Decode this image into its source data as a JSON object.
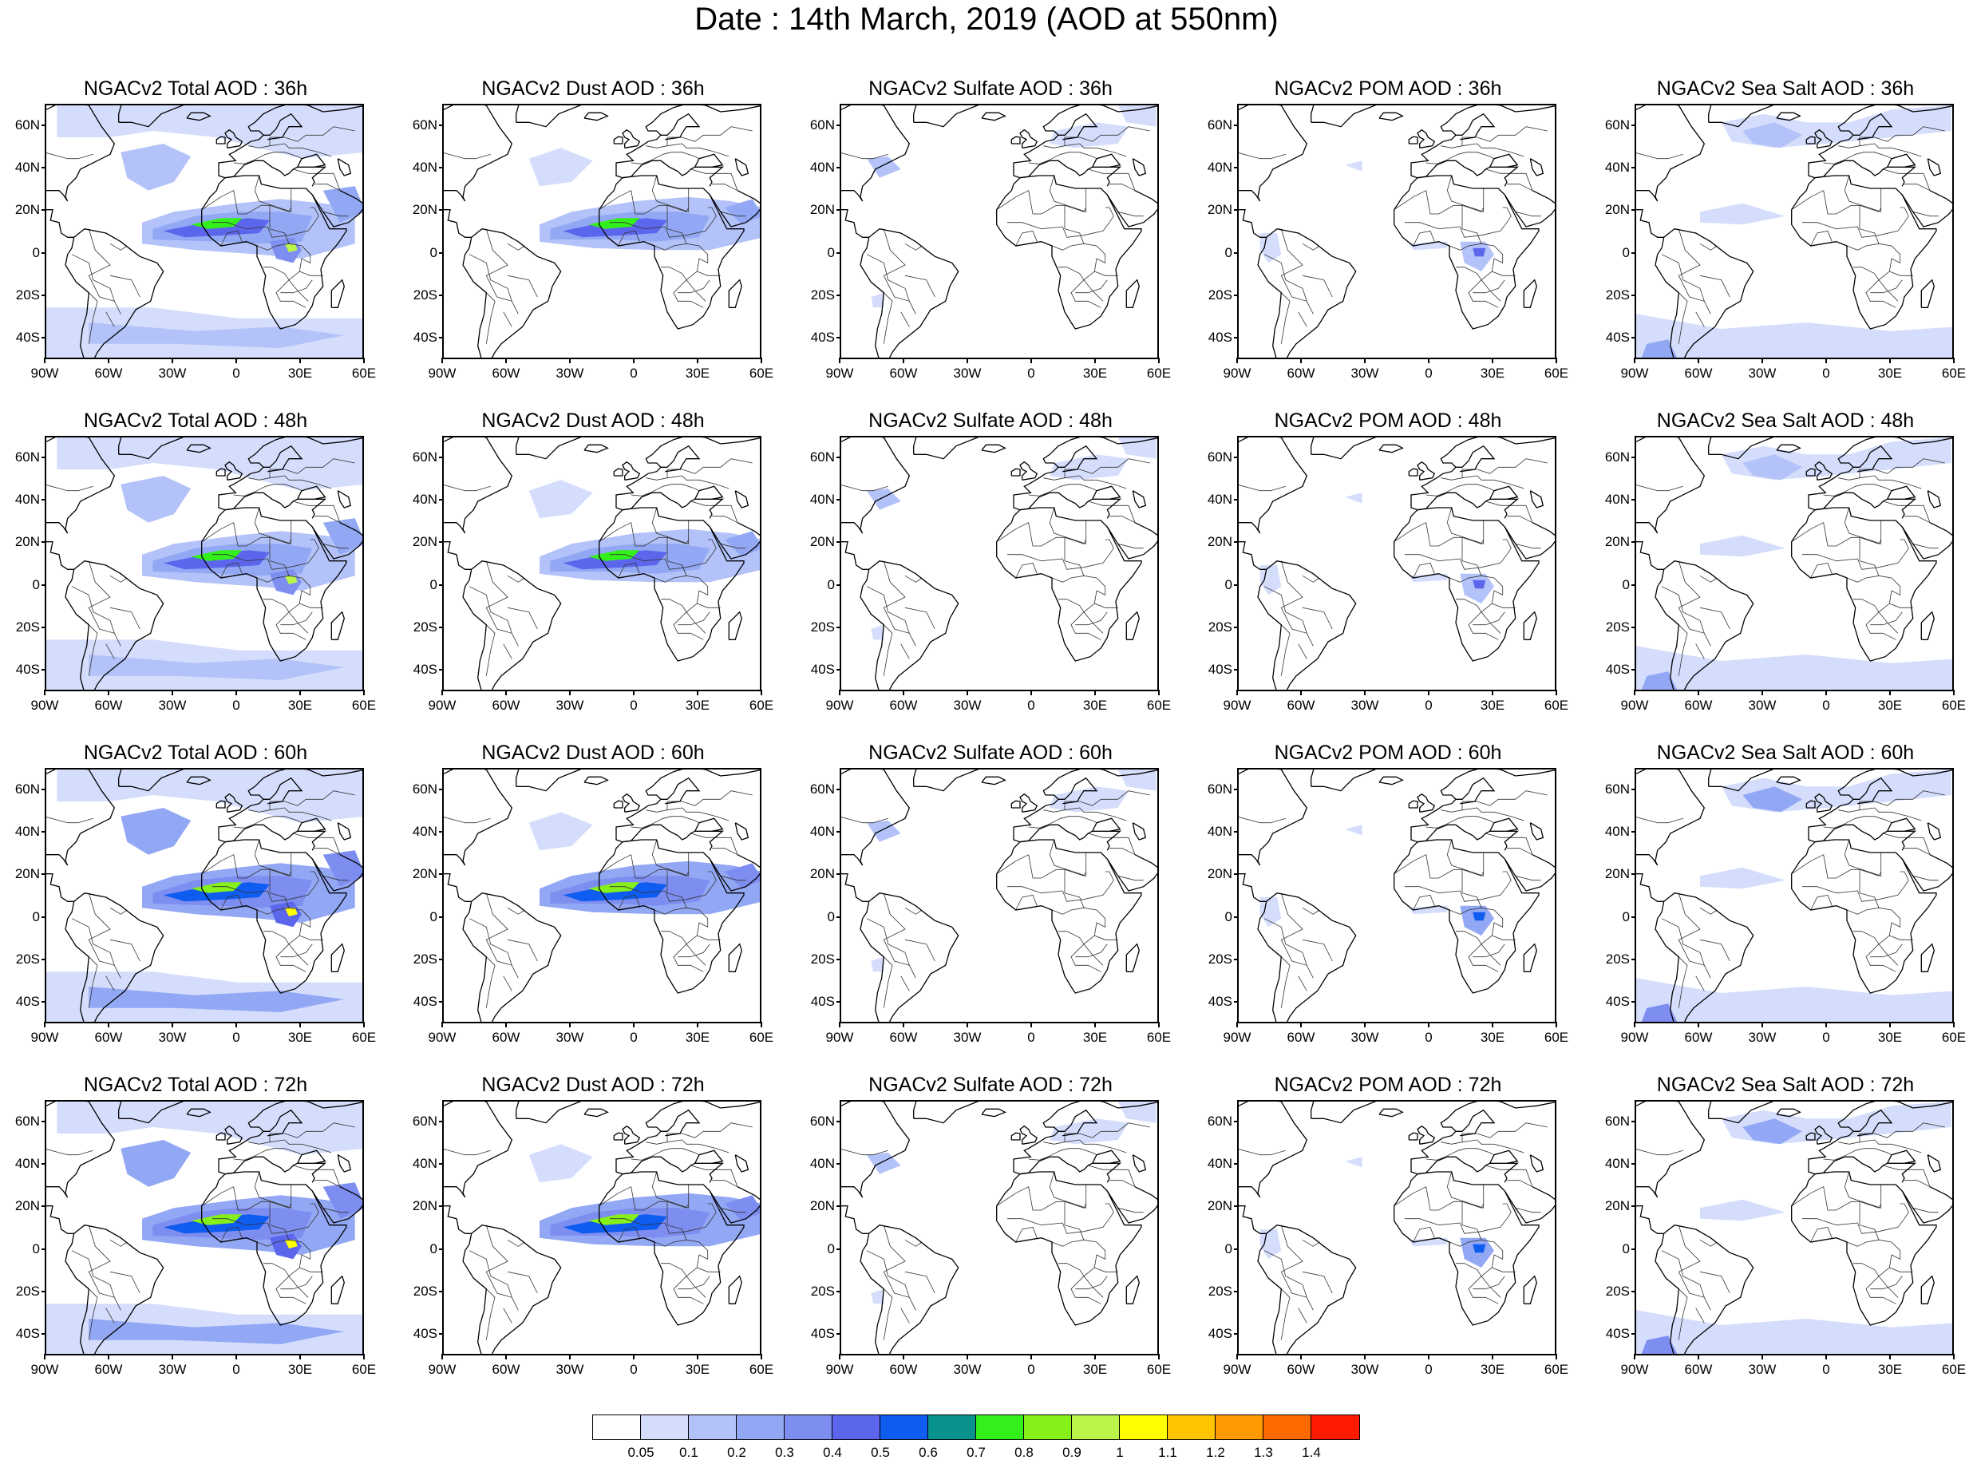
{
  "title": "Date : 14th March, 2019 (AOD at 550nm)",
  "lat_labels": [
    "60N",
    "40N",
    "20N",
    "0",
    "20S",
    "40S"
  ],
  "lon_labels": [
    "90W",
    "60W",
    "30W",
    "0",
    "30E",
    "60E"
  ],
  "panels": [
    {
      "title": "NGACv2 Total AOD : 36h",
      "species": "total"
    },
    {
      "title": "NGACv2 Dust AOD : 36h",
      "species": "dust"
    },
    {
      "title": "NGACv2 Sulfate AOD : 36h",
      "species": "sulfate"
    },
    {
      "title": "NGACv2 POM AOD : 36h",
      "species": "pom"
    },
    {
      "title": "NGACv2 Sea Salt AOD : 36h",
      "species": "seasalt"
    },
    {
      "title": "NGACv2 Total AOD : 48h",
      "species": "total"
    },
    {
      "title": "NGACv2 Dust AOD : 48h",
      "species": "dust"
    },
    {
      "title": "NGACv2 Sulfate AOD : 48h",
      "species": "sulfate"
    },
    {
      "title": "NGACv2 POM AOD : 48h",
      "species": "pom"
    },
    {
      "title": "NGACv2 Sea Salt AOD : 48h",
      "species": "seasalt"
    },
    {
      "title": "NGACv2 Total AOD : 60h",
      "species": "total"
    },
    {
      "title": "NGACv2 Dust AOD : 60h",
      "species": "dust"
    },
    {
      "title": "NGACv2 Sulfate AOD : 60h",
      "species": "sulfate"
    },
    {
      "title": "NGACv2 POM AOD : 60h",
      "species": "pom"
    },
    {
      "title": "NGACv2 Sea Salt AOD : 60h",
      "species": "seasalt"
    },
    {
      "title": "NGACv2 Total AOD : 72h",
      "species": "total"
    },
    {
      "title": "NGACv2 Dust AOD : 72h",
      "species": "dust"
    },
    {
      "title": "NGACv2 Sulfate AOD : 72h",
      "species": "sulfate"
    },
    {
      "title": "NGACv2 POM AOD : 72h",
      "species": "pom"
    },
    {
      "title": "NGACv2 Sea Salt  AOD : 72h",
      "species": "seasalt"
    }
  ],
  "colorbar": {
    "colors": [
      "#ffffff",
      "#d4ddfc",
      "#b3c2f8",
      "#93a8f4",
      "#7e8ef0",
      "#5c66ec",
      "#0e5cf0",
      "#07928f",
      "#33f01a",
      "#85f01a",
      "#bcf54a",
      "#ffff00",
      "#ffc400",
      "#ff9a00",
      "#ff6a00",
      "#ff1a00"
    ],
    "labels": [
      "0.05",
      "0.1",
      "0.2",
      "0.3",
      "0.4",
      "0.5",
      "0.6",
      "0.7",
      "0.8",
      "0.9",
      "1",
      "1.1",
      "1.2",
      "1.3",
      "1.4"
    ]
  }
}
